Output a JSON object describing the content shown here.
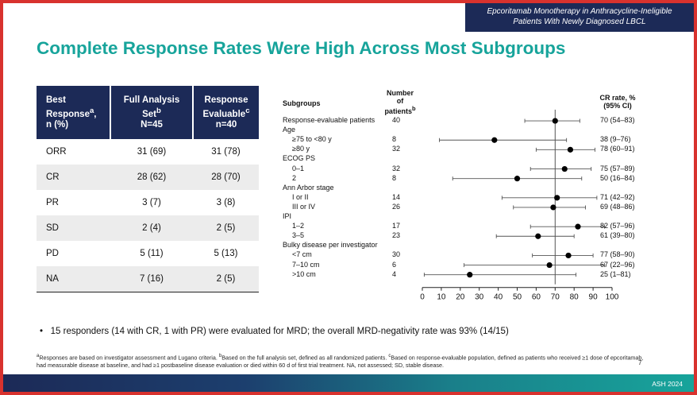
{
  "banner": {
    "line1": "Epcoritamab Monotherapy in Anthracycline-Ineligible",
    "line2": "Patients With Newly Diagnosed LBCL"
  },
  "title": "Complete Response Rates Were High Across Most Subgroups",
  "table": {
    "headers": [
      {
        "l1": "Best",
        "l2": "Response",
        "sup": "a",
        "l3": "n (%)"
      },
      {
        "l1": "Full Analysis",
        "l2": "Set",
        "sup": "b",
        "l3": "N=45"
      },
      {
        "l1": "Response",
        "l2": "Evaluable",
        "sup": "c",
        "l3": "n=40"
      }
    ],
    "rows": [
      [
        "ORR",
        "31 (69)",
        "31 (78)"
      ],
      [
        "CR",
        "28 (62)",
        "28 (70)"
      ],
      [
        "PR",
        "3 (7)",
        "3 (8)"
      ],
      [
        "SD",
        "2 (4)",
        "2 (5)"
      ],
      [
        "PD",
        "5 (11)",
        "5 (13)"
      ],
      [
        "NA",
        "7 (16)",
        "2 (5)"
      ]
    ]
  },
  "chart_data": {
    "type": "forest",
    "headers": {
      "subgroups": "Subgroups",
      "number_l1": "Number",
      "number_l2": "of",
      "number_l3": "patients",
      "number_sup": "b",
      "cr_l1": "CR rate, %",
      "cr_l2": "(95% CI)"
    },
    "xlim": [
      0,
      100
    ],
    "xticks": [
      0,
      10,
      20,
      30,
      40,
      50,
      60,
      70,
      80,
      90,
      100
    ],
    "reference_line": 70,
    "rows": [
      {
        "label": "Response-evaluable patients",
        "indent": false,
        "n": "40",
        "cr": "70 (54–83)",
        "est": 70,
        "lo": 54,
        "hi": 83
      },
      {
        "label": "Age",
        "indent": false,
        "heading": true
      },
      {
        "label": "≥75 to <80 y",
        "indent": true,
        "n": "8",
        "cr": "38 (9–76)",
        "est": 38,
        "lo": 9,
        "hi": 76
      },
      {
        "label": "≥80 y",
        "indent": true,
        "n": "32",
        "cr": "78 (60–91)",
        "est": 78,
        "lo": 60,
        "hi": 91
      },
      {
        "label": "ECOG PS",
        "indent": false,
        "heading": true
      },
      {
        "label": "0–1",
        "indent": true,
        "n": "32",
        "cr": "75 (57–89)",
        "est": 75,
        "lo": 57,
        "hi": 89
      },
      {
        "label": "2",
        "indent": true,
        "n": "8",
        "cr": "50 (16–84)",
        "est": 50,
        "lo": 16,
        "hi": 84
      },
      {
        "label": "Ann Arbor stage",
        "indent": false,
        "heading": true
      },
      {
        "label": "I or II",
        "indent": true,
        "n": "14",
        "cr": "71 (42–92)",
        "est": 71,
        "lo": 42,
        "hi": 92
      },
      {
        "label": "III or IV",
        "indent": true,
        "n": "26",
        "cr": "69 (48–86)",
        "est": 69,
        "lo": 48,
        "hi": 86
      },
      {
        "label": "IPI",
        "indent": false,
        "heading": true
      },
      {
        "label": "1–2",
        "indent": true,
        "n": "17",
        "cr": "82 (57–96)",
        "est": 82,
        "lo": 57,
        "hi": 96
      },
      {
        "label": "3–5",
        "indent": true,
        "n": "23",
        "cr": "61 (39–80)",
        "est": 61,
        "lo": 39,
        "hi": 80
      },
      {
        "label": "Bulky disease per investigator",
        "indent": false,
        "heading": true
      },
      {
        "label": "<7 cm",
        "indent": true,
        "n": "30",
        "cr": "77 (58–90)",
        "est": 77,
        "lo": 58,
        "hi": 90
      },
      {
        "label": "7–10 cm",
        "indent": true,
        "n": "6",
        "cr": "67 (22–96)",
        "est": 67,
        "lo": 22,
        "hi": 96
      },
      {
        "label": ">10 cm",
        "indent": true,
        "n": "4",
        "cr": "25 (1–81)",
        "est": 25,
        "lo": 1,
        "hi": 81
      }
    ]
  },
  "bullet": "15 responders (14 with CR, 1 with PR) were evaluated for MRD; the overall MRD-negativity rate was 93% (14/15)",
  "footnotes": {
    "a_mark": "a",
    "a": "Responses are based on investigator assessment and Lugano criteria. ",
    "b_mark": "b",
    "b": "Based on the full analysis set, defined as all randomized patients. ",
    "c_mark": "c",
    "c": "Based on response-evaluable population, defined as patients who received ≥1 dose of epcoritamab, had measurable disease at baseline, and had ≥1 postbaseline disease evaluation or died within 60 d of first trial treatment. NA, not assessed; SD, stable disease."
  },
  "page_number": "7",
  "footer_label": "ASH 2024",
  "colors": {
    "title": "#17a49b",
    "navy": "#1c2a57",
    "frame": "#d8322e"
  }
}
